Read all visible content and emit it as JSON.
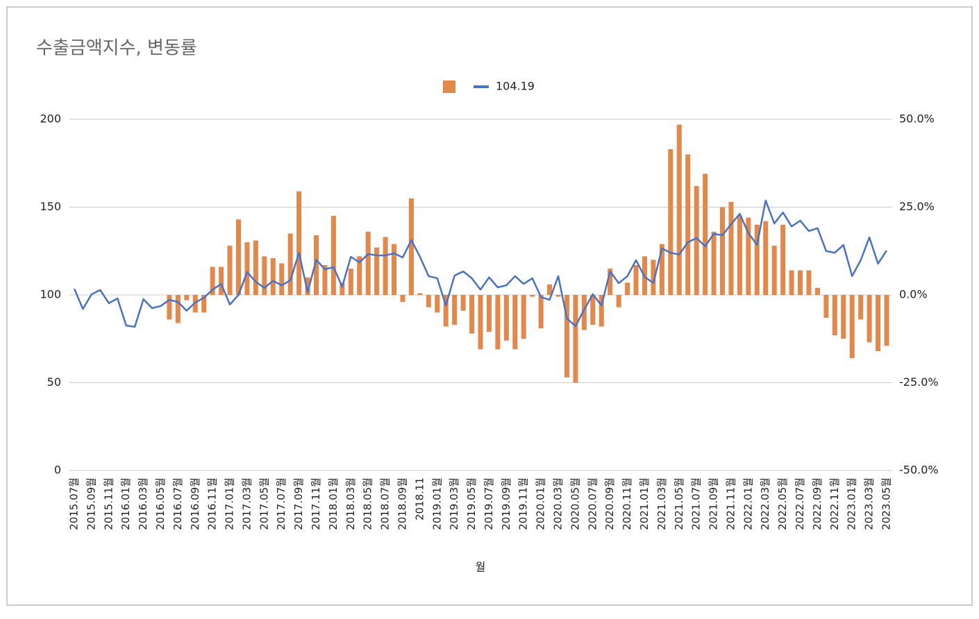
{
  "chart_data": {
    "type": "combo",
    "title": "수출금액지수, 변동률",
    "x_label": "월",
    "categories": [
      "2015.07월",
      null,
      "2015.09월",
      null,
      "2015.11월",
      null,
      "2016.01월",
      null,
      "2016.03월",
      null,
      "2016.05월",
      null,
      "2016.07월",
      null,
      "2016.09월",
      null,
      "2016.11월",
      null,
      "2017.01월",
      null,
      "2017.03월",
      null,
      "2017.05월",
      null,
      "2017.07월",
      null,
      "2017.09월",
      null,
      "2017.11월",
      null,
      "2018.01월",
      null,
      "2018.03월",
      null,
      "2018.05월",
      null,
      "2018.07월",
      null,
      "2018.09월",
      null,
      "2018.11",
      null,
      "2019.01월",
      null,
      "2019.03월",
      null,
      "2019.05월",
      null,
      "2019.07월",
      null,
      "2019.09월",
      null,
      "2019.11월",
      null,
      "2020.01월",
      null,
      "2020.03월",
      null,
      "2020.05월",
      null,
      "2020.07월",
      null,
      "2020.09월",
      null,
      "2020.11월",
      null,
      "2021.01월",
      null,
      "2021.03월",
      null,
      "2021.05월",
      null,
      "2021.07월",
      null,
      "2021.09월",
      null,
      "2021.11월",
      null,
      "2022.01월",
      null,
      "2022.03월",
      null,
      "2022.05월",
      null,
      "2022.07월",
      null,
      "2022.09월",
      null,
      "2022.11월",
      null,
      "2023.01월",
      null,
      "2023.03월",
      null,
      "2023.05월"
    ],
    "series": [
      {
        "type": "bar",
        "axis": "y2",
        "color": "#e3884a",
        "values": [
          null,
          null,
          null,
          null,
          null,
          null,
          null,
          null,
          null,
          null,
          null,
          -7,
          -8,
          -1.5,
          -5,
          -5,
          8,
          8,
          14,
          21.5,
          15,
          15.5,
          11,
          10.5,
          9,
          17.5,
          29.5,
          5,
          17,
          8.5,
          22.5,
          3.5,
          7.5,
          11,
          18,
          13.5,
          16.5,
          14.5,
          -2,
          27.5,
          0.5,
          -3.5,
          -5,
          -9,
          -8.5,
          -4.5,
          -11,
          -15.5,
          -10.5,
          -15.5,
          -13,
          -15.5,
          -12.5,
          -0.5,
          -9.5,
          3,
          -0.5,
          -23.5,
          -25,
          -10,
          -8.5,
          -9,
          7.5,
          -3.5,
          3.5,
          8.5,
          11,
          10,
          14.5,
          41.5,
          48.5,
          40,
          31,
          34.5,
          18,
          25,
          26.5,
          22.5,
          22,
          20,
          21,
          14,
          20,
          7,
          7,
          7,
          2,
          -6.5,
          -11.5,
          -12.5,
          -18,
          -7,
          -13.5,
          -16,
          -14.5
        ]
      },
      {
        "type": "line",
        "name": "104.19",
        "color": "#4a72c4",
        "values": [
          103.5,
          92,
          100.4,
          102.8,
          95.3,
          98,
          82.6,
          81.8,
          97.6,
          92.5,
          93.7,
          97.2,
          96,
          91,
          95.7,
          98.4,
          103,
          106.3,
          94.5,
          100,
          113,
          107.5,
          104,
          108,
          105.5,
          108.3,
          124,
          101.6,
          120,
          114.6,
          115.8,
          104.7,
          121.7,
          118.6,
          123.3,
          122.5,
          122.5,
          123.7,
          121.3,
          131.2,
          121.7,
          110.7,
          109.5,
          94,
          111,
          113.4,
          109.5,
          103,
          110,
          104.3,
          105.5,
          110.7,
          106.3,
          109.5,
          98.8,
          97.2,
          110.7,
          86.6,
          82.2,
          91.7,
          100.4,
          94,
          113.4,
          106.7,
          110.7,
          119.8,
          110.3,
          106.7,
          126.5,
          124,
          123,
          130,
          132.4,
          127.7,
          134.8,
          134,
          140.3,
          146.2,
          135.2,
          128.5,
          153.8,
          140.7,
          147,
          139,
          142.3,
          136.4,
          138,
          125,
          124,
          128.5,
          110.7,
          119.8,
          132.8,
          117.8,
          125.3
        ]
      }
    ],
    "ylim": [
      0,
      200
    ],
    "yticks": [
      0,
      50,
      100,
      150,
      200
    ],
    "y2lim": [
      -50,
      50
    ],
    "y2ticks": [
      {
        "value": -50,
        "label": "-50.0%"
      },
      {
        "value": -25,
        "label": "-25.0%"
      },
      {
        "value": 0,
        "label": "0.0%"
      },
      {
        "value": 25,
        "label": "25.0%"
      },
      {
        "value": 50,
        "label": "50.0%"
      }
    ],
    "grid": true,
    "legend": "top"
  }
}
